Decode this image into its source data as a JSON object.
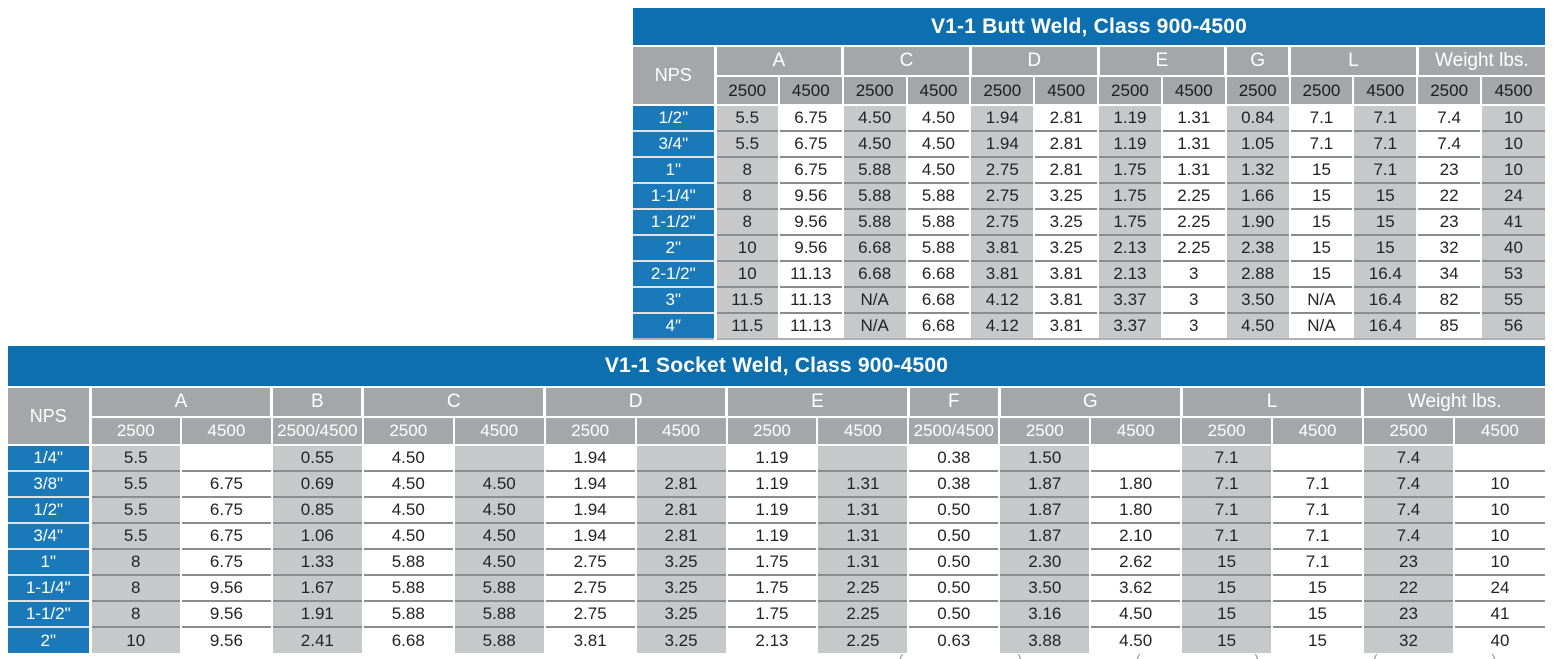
{
  "colors": {
    "title_bar_blue": "#0d6fad",
    "nps_cell_blue": "#1a79b8",
    "header_gray": "#a4a6a9",
    "shaded_cell_gray": "#c7c8ca",
    "row_line_gray": "#8a8c8f",
    "text_dark": "#232323"
  },
  "butt_weld": {
    "title": "V1-1 Butt Weld, Class 900-4500",
    "nps_label": "NPS",
    "groups": [
      {
        "label": "A",
        "classes": [
          "2500",
          "4500"
        ]
      },
      {
        "label": "C",
        "classes": [
          "2500",
          "4500"
        ]
      },
      {
        "label": "D",
        "classes": [
          "2500",
          "4500"
        ]
      },
      {
        "label": "E",
        "classes": [
          "2500",
          "4500"
        ]
      },
      {
        "label": "G",
        "classes": [
          "2500"
        ]
      },
      {
        "label": "L",
        "classes": [
          "2500",
          "4500"
        ]
      },
      {
        "label": "Weight lbs.",
        "classes": [
          "2500",
          "4500"
        ]
      }
    ],
    "rows": [
      {
        "nps": "1/2\"",
        "values": [
          "5.5",
          "6.75",
          "4.50",
          "4.50",
          "1.94",
          "2.81",
          "1.19",
          "1.31",
          "0.84",
          "7.1",
          "7.1",
          "7.4",
          "10"
        ]
      },
      {
        "nps": "3/4\"",
        "values": [
          "5.5",
          "6.75",
          "4.50",
          "4.50",
          "1.94",
          "2.81",
          "1.19",
          "1.31",
          "1.05",
          "7.1",
          "7.1",
          "7.4",
          "10"
        ]
      },
      {
        "nps": "1\"",
        "values": [
          "8",
          "6.75",
          "5.88",
          "4.50",
          "2.75",
          "2.81",
          "1.75",
          "1.31",
          "1.32",
          "15",
          "7.1",
          "23",
          "10"
        ]
      },
      {
        "nps": "1-1/4\"",
        "values": [
          "8",
          "9.56",
          "5.88",
          "5.88",
          "2.75",
          "3.25",
          "1.75",
          "2.25",
          "1.66",
          "15",
          "15",
          "22",
          "24"
        ]
      },
      {
        "nps": "1-1/2\"",
        "values": [
          "8",
          "9.56",
          "5.88",
          "5.88",
          "2.75",
          "3.25",
          "1.75",
          "2.25",
          "1.90",
          "15",
          "15",
          "23",
          "41"
        ]
      },
      {
        "nps": "2\"",
        "values": [
          "10",
          "9.56",
          "6.68",
          "5.88",
          "3.81",
          "3.25",
          "2.13",
          "2.25",
          "2.38",
          "15",
          "15",
          "32",
          "40"
        ]
      },
      {
        "nps": "2-1/2\"",
        "values": [
          "10",
          "11.13",
          "6.68",
          "6.68",
          "3.81",
          "3.81",
          "2.13",
          "3",
          "2.88",
          "15",
          "16.4",
          "34",
          "53"
        ]
      },
      {
        "nps": "3\"",
        "values": [
          "11.5",
          "11.13",
          "N/A",
          "6.68",
          "4.12",
          "3.81",
          "3.37",
          "3",
          "3.50",
          "N/A",
          "16.4",
          "82",
          "55"
        ]
      },
      {
        "nps": "4″",
        "values": [
          "11.5",
          "11.13",
          "N/A",
          "6.68",
          "4.12",
          "3.81",
          "3.37",
          "3",
          "4.50",
          "N/A",
          "16.4",
          "85",
          "56"
        ]
      }
    ]
  },
  "socket_weld": {
    "title": "V1-1 Socket Weld, Class 900-4500",
    "nps_label": "NPS",
    "groups": [
      {
        "label": "A",
        "classes": [
          "2500",
          "4500"
        ]
      },
      {
        "label": "B",
        "classes": [
          "2500/4500"
        ]
      },
      {
        "label": "C",
        "classes": [
          "2500",
          "4500"
        ]
      },
      {
        "label": "D",
        "classes": [
          "2500",
          "4500"
        ]
      },
      {
        "label": "E",
        "classes": [
          "2500",
          "4500"
        ]
      },
      {
        "label": "F",
        "classes": [
          "2500/4500"
        ]
      },
      {
        "label": "G",
        "classes": [
          "2500",
          "4500"
        ]
      },
      {
        "label": "L",
        "classes": [
          "2500",
          "4500"
        ]
      },
      {
        "label": "Weight lbs.",
        "classes": [
          "2500",
          "4500"
        ]
      }
    ],
    "rows": [
      {
        "nps": "1/4\"",
        "values": [
          "5.5",
          "",
          "0.55",
          "4.50",
          "",
          "1.94",
          "",
          "1.19",
          "",
          "0.38",
          "1.50",
          "",
          "7.1",
          "",
          "7.4",
          ""
        ]
      },
      {
        "nps": "3/8\"",
        "values": [
          "5.5",
          "6.75",
          "0.69",
          "4.50",
          "4.50",
          "1.94",
          "2.81",
          "1.19",
          "1.31",
          "0.38",
          "1.87",
          "1.80",
          "7.1",
          "7.1",
          "7.4",
          "10"
        ]
      },
      {
        "nps": "1/2\"",
        "values": [
          "5.5",
          "6.75",
          "0.85",
          "4.50",
          "4.50",
          "1.94",
          "2.81",
          "1.19",
          "1.31",
          "0.50",
          "1.87",
          "1.80",
          "7.1",
          "7.1",
          "7.4",
          "10"
        ]
      },
      {
        "nps": "3/4\"",
        "values": [
          "5.5",
          "6.75",
          "1.06",
          "4.50",
          "4.50",
          "1.94",
          "2.81",
          "1.19",
          "1.31",
          "0.50",
          "1.87",
          "2.10",
          "7.1",
          "7.1",
          "7.4",
          "10"
        ]
      },
      {
        "nps": "1\"",
        "values": [
          "8",
          "6.75",
          "1.33",
          "5.88",
          "4.50",
          "2.75",
          "3.25",
          "1.75",
          "1.31",
          "0.50",
          "2.30",
          "2.62",
          "15",
          "7.1",
          "23",
          "10"
        ]
      },
      {
        "nps": "1-1/4\"",
        "values": [
          "8",
          "9.56",
          "1.67",
          "5.88",
          "5.88",
          "2.75",
          "3.25",
          "1.75",
          "2.25",
          "0.50",
          "3.50",
          "3.62",
          "15",
          "15",
          "22",
          "24"
        ]
      },
      {
        "nps": "1-1/2\"",
        "values": [
          "8",
          "9.56",
          "1.91",
          "5.88",
          "5.88",
          "2.75",
          "3.25",
          "1.75",
          "2.25",
          "0.50",
          "3.16",
          "4.50",
          "15",
          "15",
          "23",
          "41"
        ]
      },
      {
        "nps": "2\"",
        "values": [
          "10",
          "9.56",
          "2.41",
          "6.68",
          "5.88",
          "3.81",
          "3.25",
          "2.13",
          "2.25",
          "0.63",
          "3.88",
          "4.50",
          "15",
          "15",
          "32",
          "40"
        ]
      }
    ]
  },
  "clipped_footnote_marks": "( ) ( ) ( ) ( ) ( )"
}
